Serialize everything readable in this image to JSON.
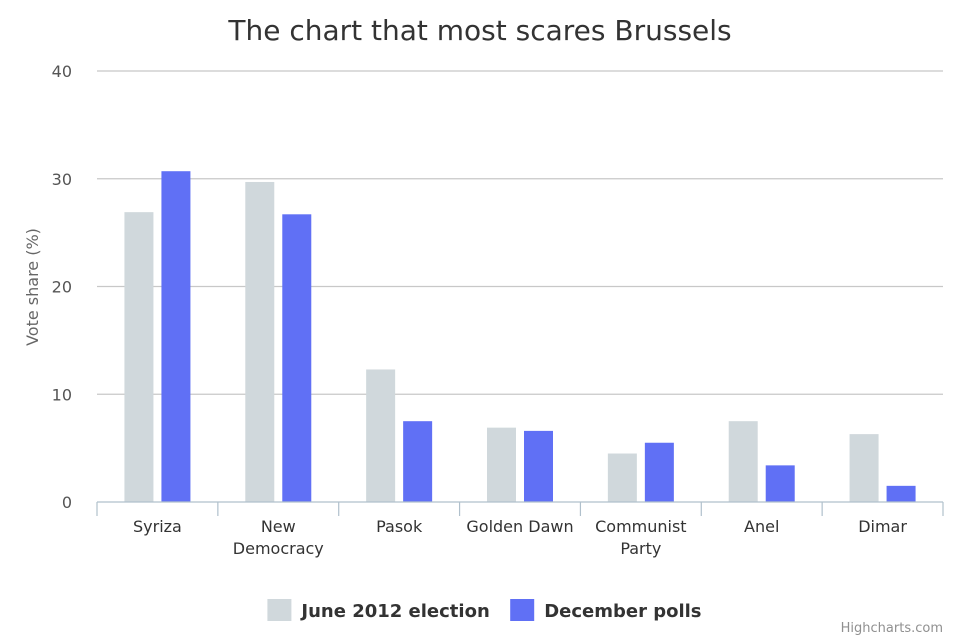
{
  "chart_data": {
    "type": "bar",
    "title": "The chart that most scares Brussels",
    "xlabel": "",
    "ylabel": "Vote share (%)",
    "ylim": [
      0,
      40
    ],
    "yticks": [
      0,
      10,
      20,
      30,
      40
    ],
    "grid": true,
    "legend_position": "bottom-center",
    "categories": [
      [
        "Syriza"
      ],
      [
        "New",
        "Democracy"
      ],
      [
        "Pasok"
      ],
      [
        "Golden Dawn"
      ],
      [
        "Communist",
        "Party"
      ],
      [
        "Anel"
      ],
      [
        "Dimar"
      ]
    ],
    "series": [
      {
        "name": "June 2012 election",
        "color": "#d0d8dc",
        "values": [
          26.9,
          29.7,
          12.3,
          6.9,
          4.5,
          7.5,
          6.3
        ]
      },
      {
        "name": "December polls",
        "color": "#6070f5",
        "values": [
          30.7,
          26.7,
          7.5,
          6.6,
          5.5,
          3.4,
          1.5
        ]
      }
    ],
    "credits": "Highcharts.com"
  }
}
